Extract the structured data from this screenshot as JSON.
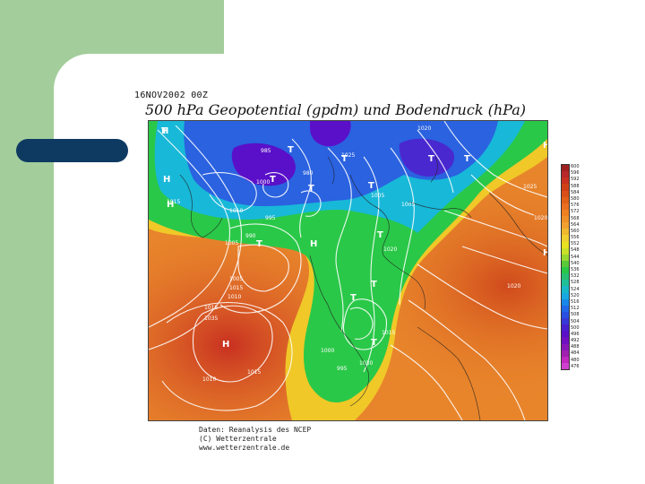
{
  "slide": {
    "date_label": "16NOV2002 00Z",
    "title": "500 hPa Geopotential (gpdm) und Bodendruck (hPa)"
  },
  "map": {
    "centers": [
      {
        "label": "H",
        "kind": "high"
      },
      {
        "label": "H",
        "kind": "high"
      },
      {
        "label": "H",
        "kind": "high"
      },
      {
        "label": "H",
        "kind": "high"
      },
      {
        "label": "H",
        "kind": "high"
      },
      {
        "label": "H",
        "kind": "high"
      },
      {
        "label": "H",
        "kind": "high"
      },
      {
        "label": "T",
        "kind": "low"
      },
      {
        "label": "T",
        "kind": "low"
      },
      {
        "label": "T",
        "kind": "low"
      },
      {
        "label": "T",
        "kind": "low"
      },
      {
        "label": "T",
        "kind": "low"
      },
      {
        "label": "T",
        "kind": "low"
      },
      {
        "label": "T",
        "kind": "low"
      },
      {
        "label": "T",
        "kind": "low"
      },
      {
        "label": "T",
        "kind": "low"
      },
      {
        "label": "T",
        "kind": "low"
      },
      {
        "label": "T",
        "kind": "low"
      },
      {
        "label": "T",
        "kind": "low"
      },
      {
        "label": "T",
        "kind": "low"
      }
    ],
    "pressure_labels": [
      "1015",
      "1010",
      "1005",
      "1000",
      "995",
      "990",
      "985",
      "980",
      "1020",
      "1025",
      "1035",
      "1015",
      "1005",
      "1010",
      "1000",
      "995",
      "1030",
      "1015",
      "1010",
      "1015",
      "1025",
      "1020",
      "1020",
      "1015",
      "1005",
      "1020",
      "1005"
    ],
    "colors": {
      "deep_low": "#5a10c8",
      "low": "#2a62e0",
      "mid_low": "#18b8d8",
      "mid": "#2ac848",
      "mid_high": "#e8e020",
      "high": "#e88a20",
      "very_high": "#c83020",
      "contour": "#ffffff",
      "coast": "#222222"
    }
  },
  "scale": {
    "labels": [
      "600",
      "596",
      "592",
      "588",
      "584",
      "580",
      "576",
      "572",
      "568",
      "564",
      "560",
      "556",
      "552",
      "548",
      "544",
      "540",
      "536",
      "532",
      "528",
      "524",
      "520",
      "516",
      "512",
      "508",
      "504",
      "500",
      "496",
      "492",
      "488",
      "484",
      "480",
      "476"
    ],
    "colors": [
      "#a02020",
      "#b82828",
      "#c83020",
      "#d04018",
      "#d85018",
      "#e06018",
      "#e87020",
      "#f08020",
      "#f09028",
      "#f0a030",
      "#f0b830",
      "#f0d030",
      "#e8e020",
      "#c8e028",
      "#98d830",
      "#5ac838",
      "#2ac848",
      "#28c070",
      "#20c098",
      "#18b8c8",
      "#18a8e0",
      "#1888e8",
      "#2068e8",
      "#2850e0",
      "#3838d8",
      "#4820d0",
      "#5a10c8",
      "#7010c0",
      "#8818b8",
      "#a020b0",
      "#c028c0",
      "#d040d0"
    ]
  },
  "credits": {
    "line1": "Daten: Reanalysis des NCEP",
    "line2": "(C) Wetterzentrale",
    "line3": "www.wetterzentrale.de"
  }
}
